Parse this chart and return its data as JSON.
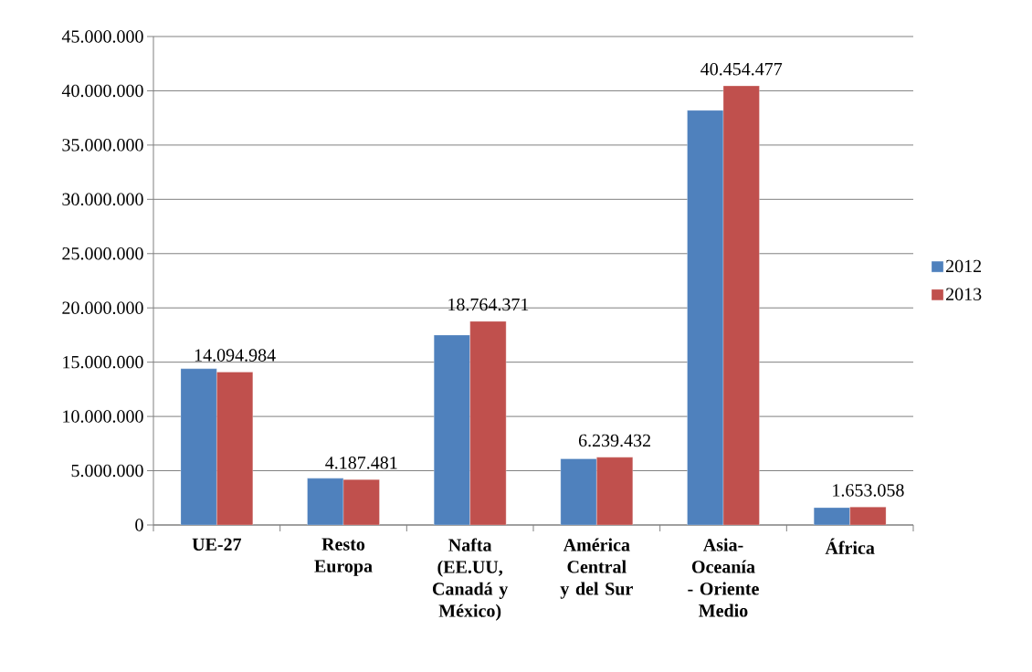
{
  "chart_data": {
    "type": "bar",
    "categories": [
      "UE-27",
      "Resto Europa",
      "Nafta (EE.UU, Canadá y México)",
      "América Central y del Sur",
      "Asia- Oceanía - Oriente Medio",
      "África"
    ],
    "series": [
      {
        "name": "2012",
        "color": "#4f81bd",
        "values": [
          14400000,
          4300000,
          17500000,
          6100000,
          38200000,
          1600000
        ]
      },
      {
        "name": "2013",
        "color": "#c0504d",
        "values": [
          14094984,
          4187481,
          18764371,
          6239432,
          40454477,
          1653058
        ],
        "value_labels": [
          "14.094.984",
          "4.187.481",
          "18.764.371",
          "6.239.432",
          "40.454.477",
          "1.653.058"
        ]
      }
    ],
    "ylim": [
      0,
      45000000
    ],
    "yticks": [
      {
        "value": 0,
        "label": "0"
      },
      {
        "value": 5000000,
        "label": "5.000.000"
      },
      {
        "value": 10000000,
        "label": "10.000.000"
      },
      {
        "value": 15000000,
        "label": "15.000.000"
      },
      {
        "value": 20000000,
        "label": "20.000.000"
      },
      {
        "value": 25000000,
        "label": "25.000.000"
      },
      {
        "value": 30000000,
        "label": "30.000.000"
      },
      {
        "value": 35000000,
        "label": "35.000.000"
      },
      {
        "value": 40000000,
        "label": "40.000.000"
      },
      {
        "value": 45000000,
        "label": "45.000.000"
      }
    ],
    "grid": "y",
    "legend": "right"
  }
}
